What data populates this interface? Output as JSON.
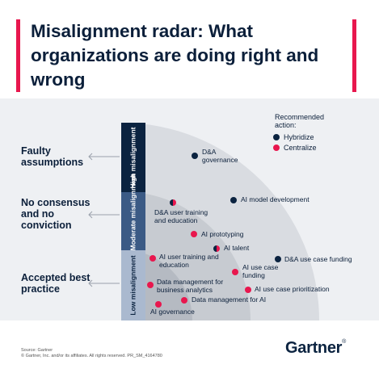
{
  "title": "Misalignment radar: What organizations are doing right and wrong",
  "levels": {
    "high": "High misalignment",
    "moderate": "Moderate misalignment",
    "low": "Low misalignment"
  },
  "left_labels": {
    "faulty": "Faulty assumptions",
    "consensus": "No consensus and no conviction",
    "accepted": "Accepted best practice"
  },
  "legend": {
    "title": "Recommended action:",
    "hybridize": "Hybridize",
    "centralize": "Centralize"
  },
  "colors": {
    "hybridize": "#0b2340",
    "centralize": "#e8174e",
    "accent": "#e8174e",
    "outer_ring": "#d9dce1",
    "middle_ring": "#c7cbd1",
    "inner_ring": "#b5bac2"
  },
  "items": [
    {
      "label": "D&A governance",
      "action": "hybridize",
      "level": "high"
    },
    {
      "label": "AI model development",
      "action": "hybridize",
      "level": "moderate"
    },
    {
      "label": "D&A user training and education",
      "action": "both",
      "level": "moderate"
    },
    {
      "label": "AI prototyping",
      "action": "centralize",
      "level": "moderate"
    },
    {
      "label": "AI talent",
      "action": "both",
      "level": "moderate"
    },
    {
      "label": "AI user training and education",
      "action": "centralize",
      "level": "low"
    },
    {
      "label": "D&A use case funding",
      "action": "hybridize",
      "level": "low"
    },
    {
      "label": "AI use case funding",
      "action": "centralize",
      "level": "low"
    },
    {
      "label": "Data management for business analytics",
      "action": "centralize",
      "level": "low"
    },
    {
      "label": "AI use case prioritization",
      "action": "centralize",
      "level": "low"
    },
    {
      "label": "Data management for AI",
      "action": "centralize",
      "level": "low"
    },
    {
      "label": "AI governance",
      "action": "centralize",
      "level": "low"
    }
  ],
  "footer": {
    "source": "Source: Gartner",
    "copyright": "© Gartner, Inc. and/or its affiliates. All rights reserved. PR_SM_4164780"
  },
  "logo": "Gartner"
}
